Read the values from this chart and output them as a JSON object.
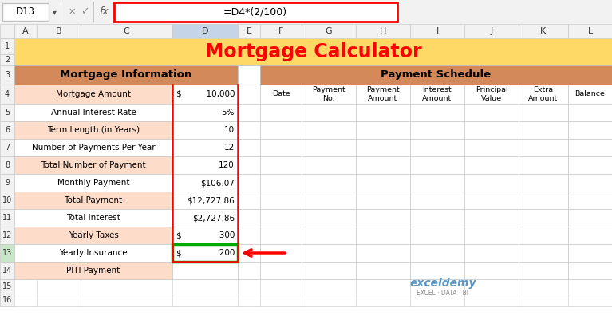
{
  "title": "Mortgage Calculator",
  "title_color": "#FF0000",
  "title_bg": "#FFD966",
  "formula_bar_text": "=D4*(2/100)",
  "cell_ref": "D13",
  "col_headers": [
    "A",
    "B",
    "C",
    "D",
    "E",
    "F",
    "G",
    "H",
    "I",
    "J",
    "K",
    "L"
  ],
  "row_headers": [
    "1",
    "2",
    "3",
    "4",
    "5",
    "6",
    "7",
    "8",
    "9",
    "10",
    "11",
    "12",
    "13",
    "14",
    "15",
    "16"
  ],
  "left_section_header": "Mortgage Information",
  "right_section_header": "Payment Schedule",
  "left_rows": [
    {
      "label": "Mortgage Amount",
      "dollar": "$",
      "value": "  10,000"
    },
    {
      "label": "Annual Interest Rate",
      "dollar": "",
      "value": "5%"
    },
    {
      "label": "Term Length (in Years)",
      "dollar": "",
      "value": "10"
    },
    {
      "label": "Number of Payments Per Year",
      "dollar": "",
      "value": "12"
    },
    {
      "label": "Total Number of Payment",
      "dollar": "",
      "value": "120"
    },
    {
      "label": "Monthly Payment",
      "dollar": "",
      "value": "$106.07"
    },
    {
      "label": "Total Payment",
      "dollar": "",
      "value": "$12,727.86"
    },
    {
      "label": "Total Interest",
      "dollar": "",
      "value": "$2,727.86"
    },
    {
      "label": "Yearly Taxes",
      "dollar": "$",
      "value": "       300"
    },
    {
      "label": "Yearly Insurance",
      "dollar": "$",
      "value": "       200"
    },
    {
      "label": "PITI Payment",
      "dollar": "",
      "value": ""
    }
  ],
  "right_col_headers": [
    "Date",
    "Payment\nNo.",
    "Payment\nAmount",
    "Interest\nAmount",
    "Principal\nValue",
    "Extra\nAmount",
    "Balance"
  ],
  "section_header_bg": "#D4895A",
  "left_label_bg_odd": "#FDDCCA",
  "left_label_bg_even": "#FFFFFF",
  "selected_cell_border": "#00AA00",
  "col_d_border": "#FF0000",
  "arrow_color": "#FF0000"
}
